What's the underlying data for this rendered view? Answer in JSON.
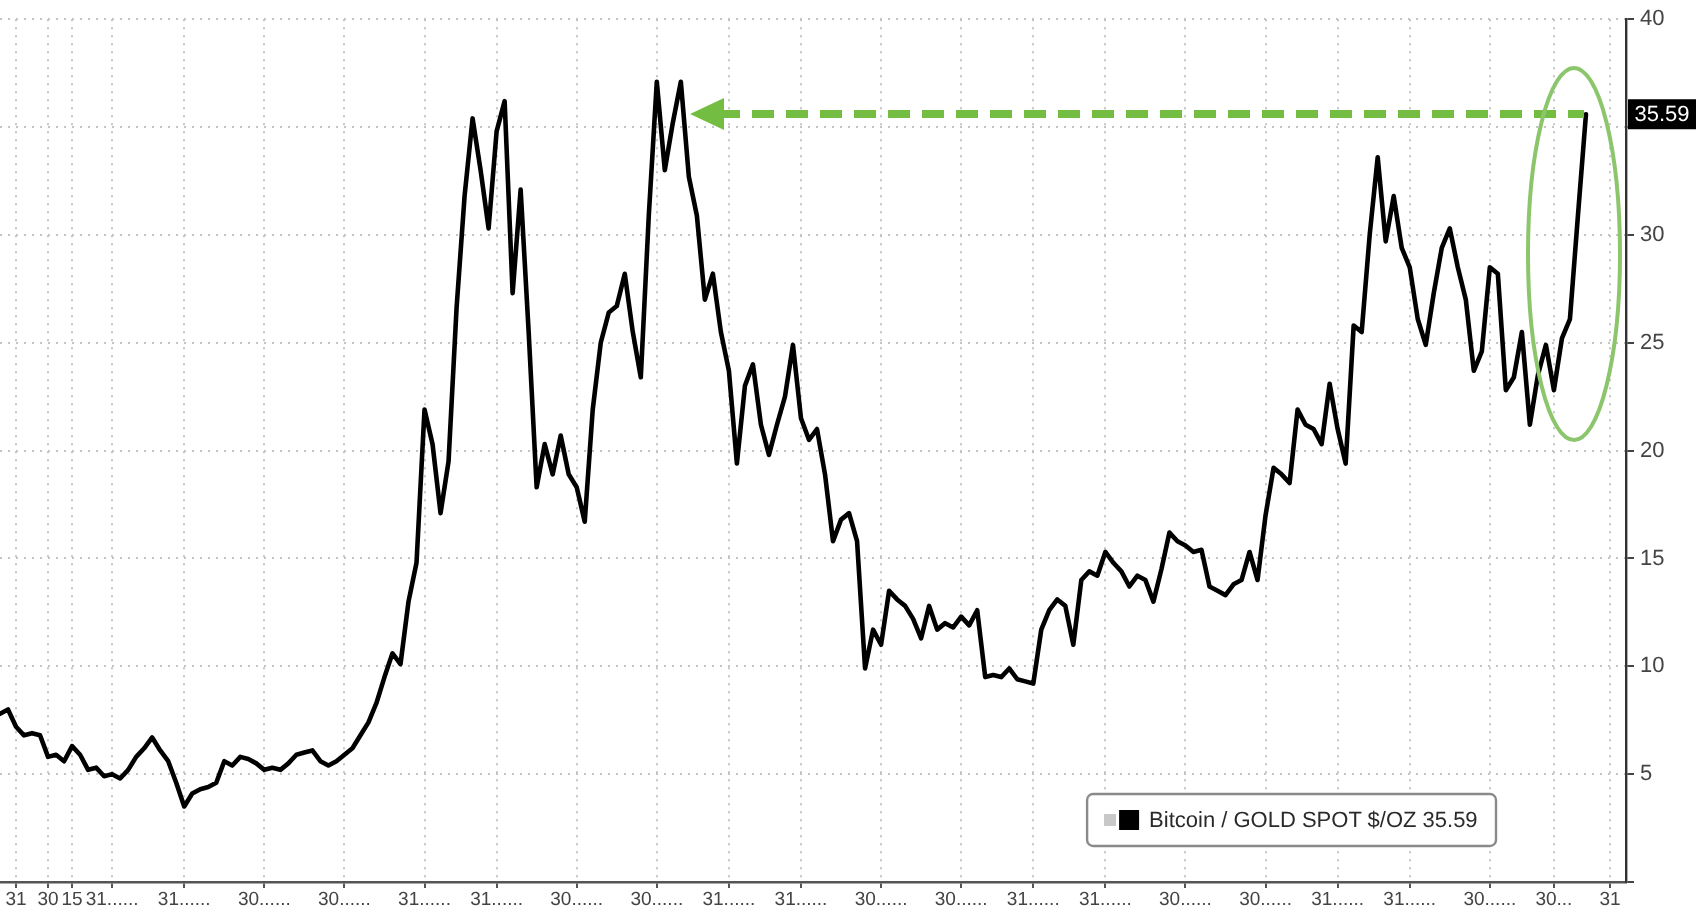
{
  "chart_data": {
    "type": "line",
    "categories": [
      null,
      null,
      "31",
      null,
      null,
      null,
      "30",
      null,
      null,
      "15",
      null,
      null,
      null,
      null,
      "31......",
      null,
      null,
      null,
      null,
      null,
      null,
      null,
      null,
      "31......",
      null,
      null,
      null,
      null,
      null,
      null,
      null,
      null,
      null,
      "30......",
      null,
      null,
      null,
      null,
      null,
      null,
      null,
      null,
      null,
      "30......",
      null,
      null,
      null,
      null,
      null,
      null,
      null,
      null,
      null,
      "31......",
      null,
      null,
      null,
      null,
      null,
      null,
      null,
      null,
      "31......",
      null,
      null,
      null,
      null,
      null,
      null,
      null,
      null,
      null,
      "30......",
      null,
      null,
      null,
      null,
      null,
      null,
      null,
      null,
      null,
      "30......",
      null,
      null,
      null,
      null,
      null,
      null,
      null,
      null,
      "31......",
      null,
      null,
      null,
      null,
      null,
      null,
      null,
      null,
      "31......",
      null,
      null,
      null,
      null,
      null,
      null,
      null,
      null,
      null,
      "30......",
      null,
      null,
      null,
      null,
      null,
      null,
      null,
      null,
      null,
      "30......",
      null,
      null,
      null,
      null,
      null,
      null,
      null,
      null,
      "31......",
      null,
      null,
      null,
      null,
      null,
      null,
      null,
      null,
      "31......",
      null,
      null,
      null,
      null,
      null,
      null,
      null,
      null,
      null,
      "30......",
      null,
      null,
      null,
      null,
      null,
      null,
      null,
      null,
      null,
      "30......",
      null,
      null,
      null,
      null,
      null,
      null,
      null,
      null,
      "31......",
      null,
      null,
      null,
      null,
      null,
      null,
      null,
      null,
      "31......",
      null,
      null,
      null,
      null,
      null,
      null,
      null,
      null,
      null,
      "30......",
      null,
      null,
      null,
      null,
      null,
      null,
      null,
      "30...",
      null,
      null,
      null,
      null,
      null,
      null,
      "31",
      null,
      null
    ],
    "series": [
      {
        "name": "Bitcoin / GOLD SPOT $/OZ 35.59",
        "color": "#000000",
        "values": [
          7.8,
          8.0,
          7.2,
          6.8,
          6.9,
          6.8,
          5.8,
          5.9,
          5.6,
          6.3,
          5.9,
          5.2,
          5.3,
          4.9,
          5.0,
          4.8,
          5.2,
          5.8,
          6.2,
          6.7,
          6.1,
          5.6,
          4.6,
          3.5,
          4.1,
          4.3,
          4.4,
          4.6,
          5.6,
          5.4,
          5.8,
          5.7,
          5.5,
          5.2,
          5.3,
          5.2,
          5.5,
          5.9,
          6.0,
          6.1,
          5.6,
          5.4,
          5.6,
          5.9,
          6.2,
          6.8,
          7.4,
          8.3,
          9.5,
          10.6,
          10.1,
          13.0,
          14.8,
          21.9,
          20.3,
          17.1,
          19.5,
          26.6,
          31.8,
          35.4,
          33.0,
          30.3,
          34.8,
          36.2,
          27.3,
          32.1,
          25.5,
          18.3,
          20.3,
          18.9,
          20.7,
          18.9,
          18.3,
          16.7,
          21.9,
          25.0,
          26.4,
          26.7,
          28.2,
          25.5,
          23.4,
          30.9,
          37.1,
          33.0,
          35.2,
          37.1,
          32.7,
          30.9,
          27.0,
          28.2,
          25.5,
          23.7,
          19.4,
          23.0,
          24.0,
          21.2,
          19.8,
          21.2,
          22.5,
          24.9,
          21.5,
          20.5,
          21.0,
          18.9,
          15.8,
          16.8,
          17.1,
          15.8,
          9.9,
          11.7,
          11.0,
          13.5,
          13.1,
          12.8,
          12.2,
          11.3,
          12.8,
          11.7,
          12.0,
          11.8,
          12.3,
          11.9,
          12.6,
          9.5,
          9.6,
          9.5,
          9.9,
          9.4,
          9.3,
          9.2,
          11.7,
          12.6,
          13.1,
          12.8,
          11.0,
          14.0,
          14.4,
          14.2,
          15.3,
          14.8,
          14.4,
          13.7,
          14.2,
          14.0,
          13.0,
          14.5,
          16.2,
          15.8,
          15.6,
          15.3,
          15.4,
          13.7,
          13.5,
          13.3,
          13.8,
          14.0,
          15.3,
          14.0,
          17.0,
          19.2,
          18.9,
          18.5,
          21.9,
          21.2,
          21.0,
          20.3,
          23.1,
          21.0,
          19.4,
          25.8,
          25.5,
          30.0,
          33.6,
          29.7,
          31.8,
          29.4,
          28.5,
          26.1,
          24.9,
          27.3,
          29.4,
          30.3,
          28.5,
          27.0,
          23.7,
          24.6,
          28.5,
          28.2,
          22.8,
          23.4,
          25.5,
          21.2,
          23.5,
          24.9,
          22.8,
          25.2,
          26.1,
          30.9,
          35.59,
          null,
          null,
          null,
          null,
          null
        ]
      }
    ],
    "ylim": [
      0,
      40
    ],
    "yticks": [
      {
        "value": 0,
        "label": null
      },
      5,
      10,
      15,
      20,
      25,
      30,
      {
        "value": 35,
        "label": null
      },
      40
    ],
    "grid": true,
    "legend": "bottom right",
    "annotations": [
      {
        "text": "35.59",
        "y": 35.59
      }
    ]
  }
}
